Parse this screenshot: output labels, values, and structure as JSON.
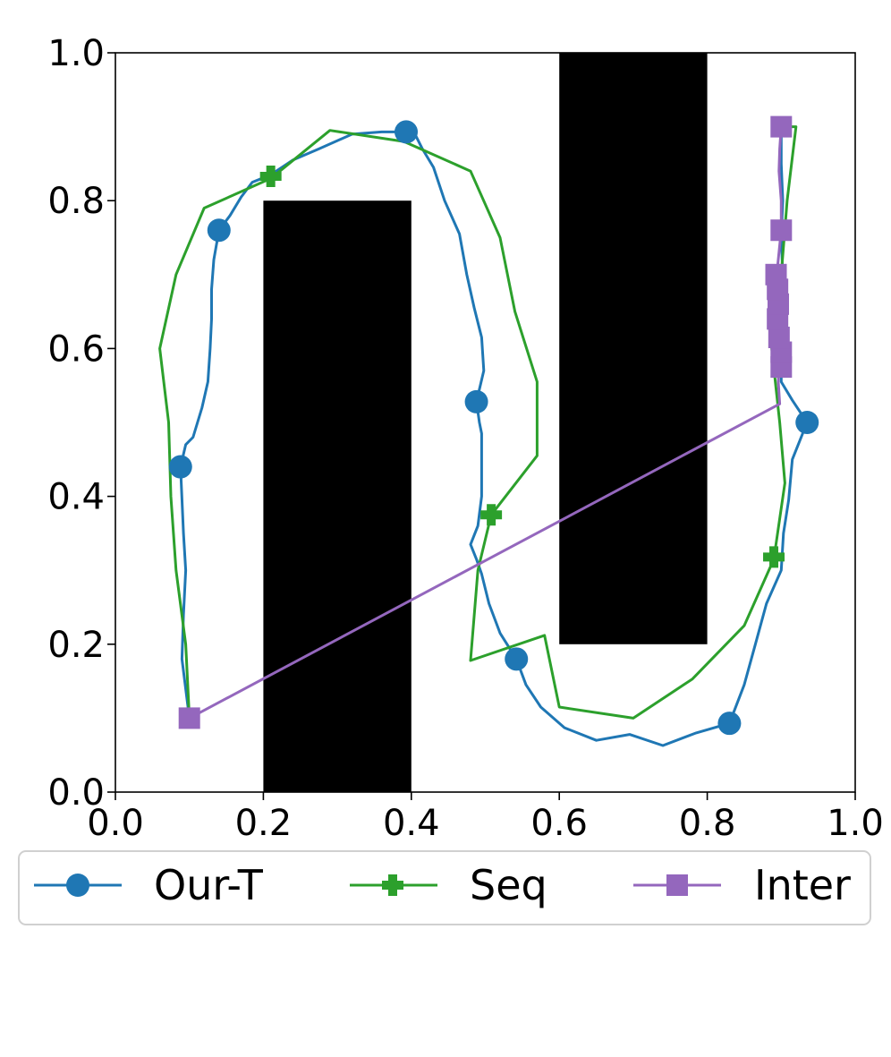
{
  "chart_data": {
    "type": "line",
    "title": "",
    "xlabel": "",
    "ylabel": "",
    "xlim": [
      0.0,
      1.0
    ],
    "ylim": [
      0.0,
      1.0
    ],
    "grid": false,
    "legend_placement": "bottom",
    "xticks": [
      "0.0",
      "0.2",
      "0.4",
      "0.6",
      "0.8",
      "1.0"
    ],
    "yticks": [
      "0.0",
      "0.2",
      "0.4",
      "0.6",
      "0.8",
      "1.0"
    ],
    "obstacles": [
      {
        "x": [
          0.2,
          0.4
        ],
        "y": [
          0.0,
          0.8
        ]
      },
      {
        "x": [
          0.6,
          0.8
        ],
        "y": [
          0.2,
          1.0
        ]
      }
    ],
    "series": [
      {
        "name": "Our-T",
        "color": "#1f77b4",
        "marker": "circle",
        "points": [
          [
            0.1,
            0.1
          ],
          [
            0.09,
            0.18
          ],
          [
            0.092,
            0.24
          ],
          [
            0.095,
            0.3
          ],
          [
            0.092,
            0.35
          ],
          [
            0.088,
            0.44
          ],
          [
            0.095,
            0.47
          ],
          [
            0.105,
            0.48
          ],
          [
            0.117,
            0.52
          ],
          [
            0.125,
            0.555
          ],
          [
            0.128,
            0.6
          ],
          [
            0.13,
            0.64
          ],
          [
            0.13,
            0.68
          ],
          [
            0.133,
            0.72
          ],
          [
            0.14,
            0.76
          ],
          [
            0.155,
            0.78
          ],
          [
            0.17,
            0.805
          ],
          [
            0.185,
            0.825
          ],
          [
            0.21,
            0.835
          ],
          [
            0.24,
            0.855
          ],
          [
            0.275,
            0.87
          ],
          [
            0.32,
            0.89
          ],
          [
            0.36,
            0.893
          ],
          [
            0.393,
            0.893
          ],
          [
            0.405,
            0.89
          ],
          [
            0.415,
            0.87
          ],
          [
            0.43,
            0.845
          ],
          [
            0.445,
            0.8
          ],
          [
            0.465,
            0.755
          ],
          [
            0.475,
            0.7
          ],
          [
            0.485,
            0.655
          ],
          [
            0.495,
            0.615
          ],
          [
            0.498,
            0.57
          ],
          [
            0.488,
            0.528
          ],
          [
            0.492,
            0.5
          ],
          [
            0.495,
            0.485
          ],
          [
            0.495,
            0.44
          ],
          [
            0.495,
            0.4
          ],
          [
            0.49,
            0.36
          ],
          [
            0.48,
            0.335
          ],
          [
            0.488,
            0.315
          ],
          [
            0.495,
            0.295
          ],
          [
            0.505,
            0.255
          ],
          [
            0.52,
            0.215
          ],
          [
            0.542,
            0.18
          ],
          [
            0.555,
            0.145
          ],
          [
            0.575,
            0.115
          ],
          [
            0.607,
            0.087
          ],
          [
            0.65,
            0.07
          ],
          [
            0.695,
            0.078
          ],
          [
            0.74,
            0.063
          ],
          [
            0.785,
            0.08
          ],
          [
            0.83,
            0.093
          ],
          [
            0.85,
            0.145
          ],
          [
            0.865,
            0.2
          ],
          [
            0.88,
            0.255
          ],
          [
            0.9,
            0.3
          ],
          [
            0.903,
            0.35
          ],
          [
            0.91,
            0.395
          ],
          [
            0.915,
            0.45
          ],
          [
            0.935,
            0.5
          ],
          [
            0.915,
            0.53
          ],
          [
            0.9,
            0.555
          ],
          [
            0.9,
            0.6
          ],
          [
            0.9,
            0.65
          ],
          [
            0.902,
            0.7
          ],
          [
            0.9,
            0.75
          ],
          [
            0.902,
            0.8
          ],
          [
            0.9,
            0.85
          ],
          [
            0.9,
            0.9
          ]
        ],
        "markers": [
          [
            0.088,
            0.44
          ],
          [
            0.14,
            0.76
          ],
          [
            0.393,
            0.893
          ],
          [
            0.488,
            0.528
          ],
          [
            0.542,
            0.18
          ],
          [
            0.83,
            0.093
          ],
          [
            0.935,
            0.5
          ]
        ]
      },
      {
        "name": "Seq",
        "color": "#2ca02c",
        "marker": "plus",
        "points": [
          [
            0.1,
            0.1
          ],
          [
            0.095,
            0.2
          ],
          [
            0.082,
            0.3
          ],
          [
            0.075,
            0.4
          ],
          [
            0.072,
            0.5
          ],
          [
            0.06,
            0.6
          ],
          [
            0.082,
            0.7
          ],
          [
            0.12,
            0.79
          ],
          [
            0.21,
            0.83
          ],
          [
            0.29,
            0.895
          ],
          [
            0.39,
            0.88
          ],
          [
            0.48,
            0.84
          ],
          [
            0.52,
            0.75
          ],
          [
            0.54,
            0.65
          ],
          [
            0.57,
            0.555
          ],
          [
            0.57,
            0.455
          ],
          [
            0.508,
            0.375
          ],
          [
            0.49,
            0.3
          ],
          [
            0.48,
            0.178
          ],
          [
            0.58,
            0.212
          ],
          [
            0.6,
            0.115
          ],
          [
            0.7,
            0.1
          ],
          [
            0.78,
            0.153
          ],
          [
            0.85,
            0.225
          ],
          [
            0.89,
            0.315
          ],
          [
            0.905,
            0.418
          ],
          [
            0.898,
            0.5
          ],
          [
            0.885,
            0.62
          ],
          [
            0.9,
            0.7
          ],
          [
            0.908,
            0.8
          ],
          [
            0.92,
            0.9
          ],
          [
            0.9,
            0.9
          ]
        ],
        "markers": [
          [
            0.21,
            0.833
          ],
          [
            0.508,
            0.375
          ],
          [
            0.89,
            0.318
          ]
        ]
      },
      {
        "name": "Inter",
        "color": "#9467bd",
        "marker": "square",
        "points": [
          [
            0.1,
            0.1
          ],
          [
            0.898,
            0.525
          ],
          [
            0.896,
            0.555
          ],
          [
            0.897,
            0.58
          ],
          [
            0.895,
            0.6
          ],
          [
            0.893,
            0.62
          ],
          [
            0.892,
            0.645
          ],
          [
            0.894,
            0.665
          ],
          [
            0.893,
            0.685
          ],
          [
            0.894,
            0.7
          ],
          [
            0.897,
            0.73
          ],
          [
            0.9,
            0.76
          ],
          [
            0.9,
            0.8
          ],
          [
            0.897,
            0.84
          ],
          [
            0.898,
            0.87
          ],
          [
            0.9,
            0.9
          ]
        ],
        "markers": [
          [
            0.1,
            0.1
          ],
          [
            0.9,
            0.575
          ],
          [
            0.9,
            0.595
          ],
          [
            0.897,
            0.615
          ],
          [
            0.895,
            0.64
          ],
          [
            0.896,
            0.66
          ],
          [
            0.895,
            0.68
          ],
          [
            0.893,
            0.7
          ],
          [
            0.9,
            0.76
          ],
          [
            0.9,
            0.9
          ]
        ]
      }
    ]
  }
}
